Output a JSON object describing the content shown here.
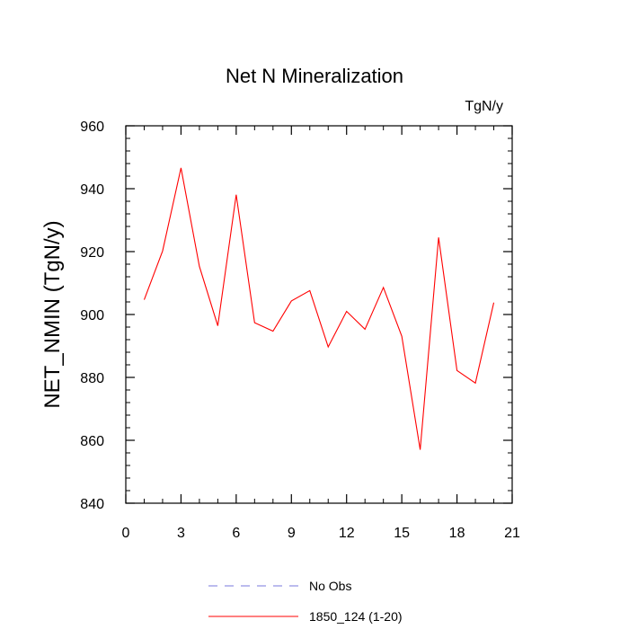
{
  "chart_data": {
    "type": "line",
    "title": "Net N Mineralization",
    "units_label": "TgN/y",
    "xlabel": "",
    "ylabel": "NET_NMIN  (TgN/y)",
    "xlim": [
      0,
      21
    ],
    "ylim": [
      840,
      960
    ],
    "x_ticks": [
      "0",
      "3",
      "6",
      "9",
      "12",
      "15",
      "18",
      "21"
    ],
    "y_ticks": [
      "840",
      "860",
      "880",
      "900",
      "920",
      "940",
      "960"
    ],
    "series": [
      {
        "name": "1850_124 (1-20)",
        "color": "#ff0000",
        "style": "solid",
        "x": [
          1,
          2,
          3,
          4,
          5,
          6,
          7,
          8,
          9,
          10,
          11,
          12,
          13,
          14,
          15,
          16,
          17,
          18,
          19,
          20
        ],
        "values": [
          904.7,
          920.2,
          946.6,
          915.3,
          896.4,
          938.1,
          897.4,
          894.7,
          904.3,
          907.6,
          889.7,
          901.0,
          895.3,
          908.6,
          893.1,
          857.0,
          924.5,
          882.2,
          878.2,
          903.8
        ]
      }
    ],
    "legend": [
      {
        "label": "No Obs",
        "color": "#7777dd",
        "style": "dashed"
      },
      {
        "label": "1850_124 (1-20)",
        "color": "#ff0000",
        "style": "solid"
      }
    ],
    "legend_position": "bottom"
  }
}
